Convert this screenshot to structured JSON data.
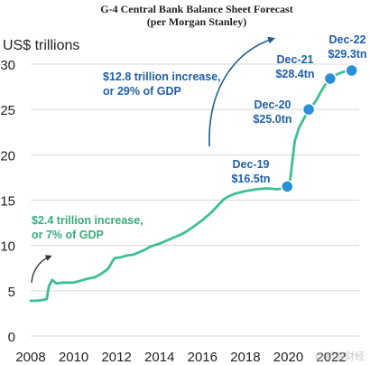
{
  "chart_data": {
    "type": "line",
    "title": "G-4 Central Bank Balance Sheet Forecast",
    "subtitle": "(per Morgan Stanley)",
    "ylabel": "US$ trillions",
    "xlabel": "",
    "xlim": [
      2008,
      2023.3
    ],
    "ylim": [
      0,
      30
    ],
    "x_ticks": [
      "2008",
      "2010",
      "2012",
      "2014",
      "2016",
      "2018",
      "2020",
      "2022"
    ],
    "y_ticks": [
      "0",
      "5",
      "10",
      "15",
      "20",
      "25",
      "30"
    ],
    "grid": "horizontal",
    "line_color": "#3dbf95",
    "marker_color": "#2a8fd6",
    "text_color_blue": "#1f5fa8",
    "text_color_green": "#3aaa7c",
    "series": [
      {
        "x": [
          2008.0,
          2008.3,
          2008.6,
          2008.75,
          2008.85,
          2009.0,
          2009.2,
          2009.5,
          2010.0,
          2010.3,
          2010.6,
          2011.0,
          2011.3,
          2011.6,
          2011.9,
          2012.2,
          2012.5,
          2012.8,
          2013.0,
          2013.3,
          2013.6,
          2014.0,
          2014.3,
          2014.6,
          2015.0,
          2015.3,
          2015.6,
          2016.0,
          2016.3,
          2016.6,
          2017.0,
          2017.2,
          2017.5,
          2018.0,
          2018.5,
          2019.0,
          2019.5,
          2019.9,
          2020.0,
          2020.1,
          2020.2,
          2020.3,
          2020.5,
          2020.8,
          2021.0,
          2021.3,
          2021.6,
          2021.9,
          2022.2,
          2022.5,
          2022.8,
          2022.95
        ],
        "y": [
          3.9,
          3.9,
          4.0,
          4.1,
          5.5,
          6.2,
          5.8,
          5.9,
          5.9,
          6.1,
          6.3,
          6.5,
          6.9,
          7.4,
          8.6,
          8.7,
          8.9,
          9.0,
          9.2,
          9.5,
          9.9,
          10.2,
          10.5,
          10.8,
          11.2,
          11.6,
          12.1,
          12.8,
          13.4,
          14.1,
          15.1,
          15.4,
          15.7,
          16.0,
          16.2,
          16.3,
          16.2,
          16.4,
          16.5,
          17.5,
          19.5,
          21.5,
          23.0,
          24.3,
          25.0,
          26.0,
          27.3,
          28.4,
          28.8,
          29.1,
          29.3,
          29.3
        ]
      }
    ],
    "markers": [
      {
        "x": 2019.95,
        "y": 16.5,
        "label_period": "Dec-19",
        "label_value": "$16.5tn"
      },
      {
        "x": 2020.95,
        "y": 25.0,
        "label_period": "Dec-20",
        "label_value": "$25.0tn"
      },
      {
        "x": 2021.95,
        "y": 28.4,
        "label_period": "Dec-21",
        "label_value": "$28.4tn"
      },
      {
        "x": 2022.95,
        "y": 29.3,
        "label_period": "Dec-22",
        "label_value": "$29.3tn"
      }
    ],
    "annotations": [
      {
        "line1": "$12.8 trillion increase,",
        "line2": "or 29% of GDP",
        "color": "blue"
      },
      {
        "line1": "$2.4 trillion increase,",
        "line2": "or 7% of GDP",
        "color": "green"
      }
    ],
    "watermark": "@新浪财经"
  }
}
